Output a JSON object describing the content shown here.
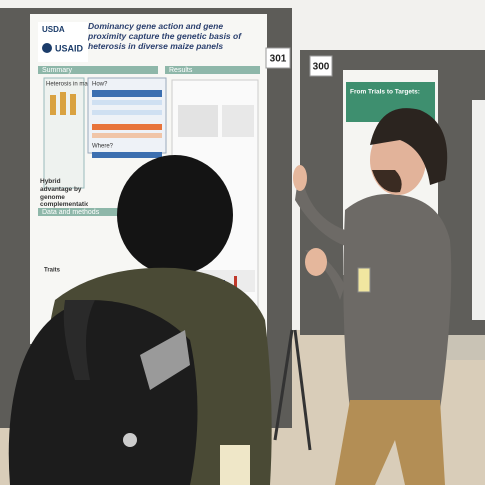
{
  "posters": [
    {
      "number": "301",
      "logos": [
        "USDA",
        "USAID"
      ],
      "title": "Dominancy gene action and gene proximity capture the genetic basis of heterosis in diverse maize panels",
      "sections": [
        "Summary",
        "Results",
        "Data and methods"
      ],
      "notes": [
        "Heterosis in maize",
        "How?",
        "Where?",
        "Hybrid advantage by genome complementation",
        "Traits"
      ]
    },
    {
      "number": "300",
      "title": "From Trials to Targets:"
    }
  ]
}
